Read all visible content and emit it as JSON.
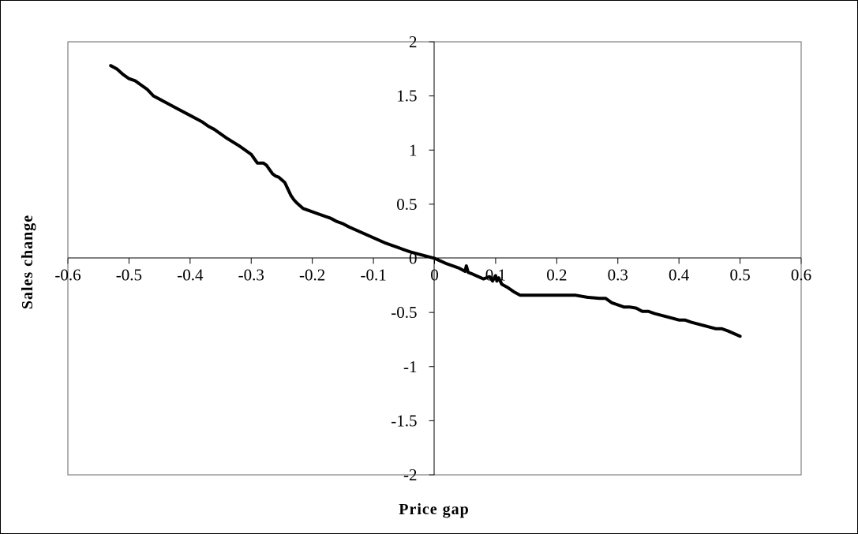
{
  "chart_data": {
    "type": "line",
    "title": "",
    "xlabel": "Price gap",
    "ylabel": "Sales change",
    "xlim": [
      -0.6,
      0.6
    ],
    "ylim": [
      -2,
      2
    ],
    "x_ticks": [
      -0.6,
      -0.5,
      -0.4,
      -0.3,
      -0.2,
      -0.1,
      0,
      0.1,
      0.2,
      0.3,
      0.4,
      0.5,
      0.6
    ],
    "y_ticks": [
      2,
      1.5,
      1,
      0.5,
      0,
      -0.5,
      -1,
      -1.5,
      -2
    ],
    "x_tick_labels": [
      "-0.6",
      "-0.5",
      "-0.4",
      "-0.3",
      "-0.2",
      "-0.1",
      "0",
      "0.1",
      "0.2",
      "0.3",
      "0.4",
      "0.5",
      "0.6"
    ],
    "y_tick_labels": [
      "2",
      "1.5",
      "1",
      "0.5",
      "0",
      "-0.5",
      "-1",
      "-1.5",
      "-2"
    ],
    "grid": false,
    "legend": "none",
    "line_color": "#000000",
    "series": [
      {
        "x": [
          -0.53,
          -0.52,
          -0.51,
          -0.5,
          -0.49,
          -0.48,
          -0.47,
          -0.46,
          -0.45,
          -0.44,
          -0.42,
          -0.4,
          -0.38,
          -0.37,
          -0.36,
          -0.34,
          -0.32,
          -0.3,
          -0.29,
          -0.28,
          -0.275,
          -0.265,
          -0.26,
          -0.255,
          -0.245,
          -0.235,
          -0.23,
          -0.225,
          -0.215,
          -0.21,
          -0.2,
          -0.19,
          -0.18,
          -0.17,
          -0.16,
          -0.15,
          -0.14,
          -0.12,
          -0.1,
          -0.08,
          -0.06,
          -0.04,
          -0.02,
          0,
          0.02,
          0.04,
          0.05,
          0.052,
          0.055,
          0.06,
          0.08,
          0.09,
          0.095,
          0.1,
          0.102,
          0.105,
          0.11,
          0.12,
          0.13,
          0.14,
          0.16,
          0.18,
          0.2,
          0.22,
          0.23,
          0.25,
          0.27,
          0.28,
          0.29,
          0.3,
          0.31,
          0.32,
          0.33,
          0.34,
          0.35,
          0.36,
          0.38,
          0.4,
          0.41,
          0.42,
          0.44,
          0.46,
          0.47,
          0.48,
          0.5
        ],
        "y": [
          1.78,
          1.75,
          1.7,
          1.66,
          1.64,
          1.6,
          1.56,
          1.5,
          1.47,
          1.44,
          1.38,
          1.32,
          1.26,
          1.22,
          1.19,
          1.11,
          1.04,
          0.96,
          0.88,
          0.88,
          0.86,
          0.78,
          0.76,
          0.75,
          0.7,
          0.58,
          0.54,
          0.51,
          0.46,
          0.45,
          0.43,
          0.41,
          0.39,
          0.37,
          0.34,
          0.32,
          0.29,
          0.24,
          0.19,
          0.14,
          0.1,
          0.06,
          0.03,
          0.0,
          -0.05,
          -0.09,
          -0.12,
          -0.07,
          -0.13,
          -0.14,
          -0.19,
          -0.17,
          -0.21,
          -0.16,
          -0.21,
          -0.18,
          -0.24,
          -0.27,
          -0.31,
          -0.34,
          -0.34,
          -0.34,
          -0.34,
          -0.34,
          -0.34,
          -0.36,
          -0.37,
          -0.37,
          -0.41,
          -0.43,
          -0.45,
          -0.45,
          -0.46,
          -0.49,
          -0.49,
          -0.51,
          -0.54,
          -0.57,
          -0.57,
          -0.59,
          -0.62,
          -0.65,
          -0.65,
          -0.67,
          -0.72
        ]
      }
    ]
  }
}
